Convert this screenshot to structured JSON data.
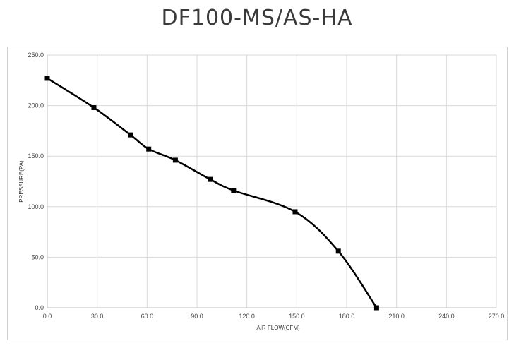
{
  "page": {
    "title": "DF100-MS/AS-HA"
  },
  "chart_data": {
    "type": "line",
    "title": "DF100-MS/AS-HA",
    "xlabel": "AIR FLOW(CFM)",
    "ylabel": "PRESSURE(PA)",
    "xlim": [
      0,
      270
    ],
    "ylim": [
      0,
      250
    ],
    "xticks": [
      "0.0",
      "30.0",
      "60.0",
      "90.0",
      "120.0",
      "150.0",
      "180.0",
      "210.0",
      "240.0",
      "270.0"
    ],
    "yticks": [
      "0.0",
      "50.0",
      "100.0",
      "150.0",
      "200.0",
      "250.0"
    ],
    "grid": true,
    "legend": "none",
    "colors": {
      "line": "#000000",
      "grid": "#d9d9d9",
      "axis": "#bfbfbf",
      "marker": "#000000"
    },
    "series": [
      {
        "x": [
          0,
          28,
          50,
          61,
          77,
          98,
          112,
          149,
          175,
          198
        ],
        "y": [
          227,
          198,
          171,
          157,
          146,
          127,
          116,
          95,
          56,
          0
        ]
      }
    ]
  }
}
